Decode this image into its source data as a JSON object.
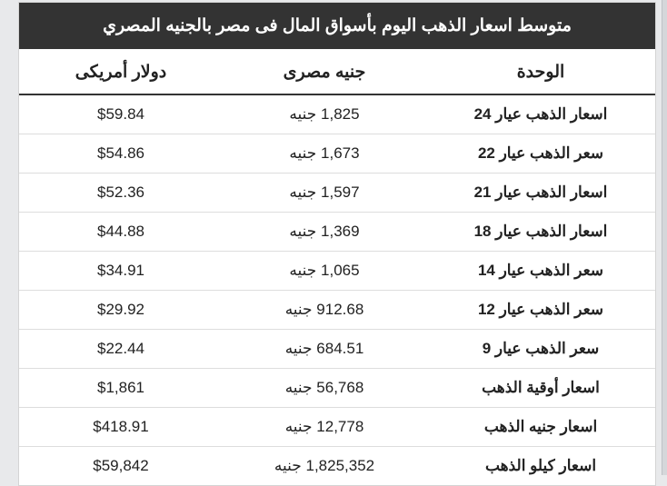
{
  "title": "متوسط اسعار الذهب اليوم بأسواق المال فى مصر بالجنيه المصري",
  "columns": {
    "unit": "الوحدة",
    "egp": "جنيه مصرى",
    "usd": "دولار أمريكى"
  },
  "rows": [
    {
      "unit": "اسعار الذهب عيار 24",
      "egp": "1,825 جنيه",
      "usd": "$59.84"
    },
    {
      "unit": "سعر الذهب عيار 22",
      "egp": "1,673 جنيه",
      "usd": "$54.86"
    },
    {
      "unit": "اسعار الذهب عيار 21",
      "egp": "1,597 جنيه",
      "usd": "$52.36"
    },
    {
      "unit": "اسعار الذهب عيار 18",
      "egp": "1,369 جنيه",
      "usd": "$44.88"
    },
    {
      "unit": "سعر الذهب عيار 14",
      "egp": "1,065 جنيه",
      "usd": "$34.91"
    },
    {
      "unit": "سعر الذهب عيار 12",
      "egp": "912.68 جنيه",
      "usd": "$29.92"
    },
    {
      "unit": "سعر الذهب عيار 9",
      "egp": "684.51 جنيه",
      "usd": "$22.44"
    },
    {
      "unit": "اسعار أوقية الذهب",
      "egp": "56,768 جنيه",
      "usd": "$1,861"
    },
    {
      "unit": "اسعار جنيه الذهب",
      "egp": "12,778 جنيه",
      "usd": "$418.91"
    },
    {
      "unit": "اسعار كيلو الذهب",
      "egp": "1,825,352 جنيه",
      "usd": "$59,842"
    }
  ],
  "colors": {
    "page_bg": "#e8e9eb",
    "card_bg": "#ffffff",
    "card_border": "#d4d4d4",
    "title_bg": "#333333",
    "title_text": "#ffffff",
    "header_underline": "#333333",
    "row_border": "#dddddd",
    "text": "#222222"
  },
  "typography": {
    "title_fontsize": 19,
    "header_fontsize": 19,
    "cell_fontsize": 17,
    "title_weight": "bold",
    "header_weight": "bold",
    "unit_weight": "bold"
  },
  "layout": {
    "column_widths_pct": {
      "unit": 36,
      "egp": 32,
      "usd": 32
    },
    "direction": "rtl"
  }
}
